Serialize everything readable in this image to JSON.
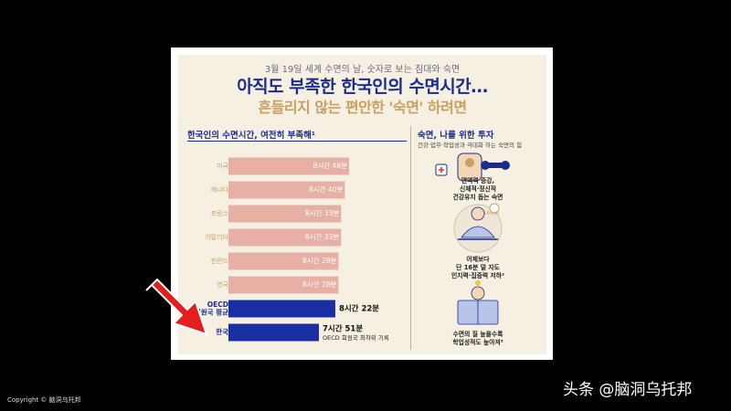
{
  "header": {
    "subtitle": "3월 19일 세계 수면의 날, 숫자로 보는 침대와 숙면",
    "title": "아직도 부족한 한국인의 수면시간…",
    "title2": "흔들리지 않는 편안한 '숙면' 하려면"
  },
  "left_section": {
    "title": "한국인의 수면시간, 여전히 부족해¹"
  },
  "right_section": {
    "title": "숙면, 나를 위한 투자",
    "subtitle": "건강·업무·학업성과 극대화 하는 숙면의 힘",
    "item1": [
      "면역력 증강,",
      "신체적·정신적",
      "건강유지 돕는 숙면"
    ],
    "clock_label": "16min",
    "item2": [
      "어제보다",
      "단 16분 덜 자도",
      "인지력·집중력 저하²"
    ],
    "item3": [
      "수면의 질 높을수록",
      "학업성적도 높아져³"
    ]
  },
  "chart_data": {
    "type": "bar",
    "orientation": "horizontal",
    "categories": [
      "미국",
      "캐나다",
      "프랑스",
      "이탈리아",
      "핀란드",
      "영국",
      "OECD 회원국 평균",
      "한국"
    ],
    "category_lines": [
      [
        "미국"
      ],
      [
        "캐나다"
      ],
      [
        "프랑스"
      ],
      [
        "이탈리아"
      ],
      [
        "핀란드"
      ],
      [
        "영국"
      ],
      [
        "OECD",
        "회원국 평균"
      ],
      [
        "한국"
      ]
    ],
    "values": [
      528,
      520,
      513,
      513,
      508,
      508,
      502,
      471
    ],
    "value_labels": [
      "8시간 48분",
      "8시간 40분",
      "8시간 33분",
      "8시간 33분",
      "8시간 28분",
      "8시간 28분",
      "8시간 22분",
      "7시간 51분"
    ],
    "annotation": "OECD 회원국 최하위 기록",
    "unit": "minutes",
    "colors": {
      "default": "#e8b0a4",
      "highlight": "#1b2fa3",
      "category_text": "#c9a063"
    }
  },
  "watermark": {
    "copyright": "Copyright © 脑洞乌托邦",
    "text": "头条 @脑洞乌托邦"
  },
  "arrow": {
    "color": "#e41e1e"
  }
}
